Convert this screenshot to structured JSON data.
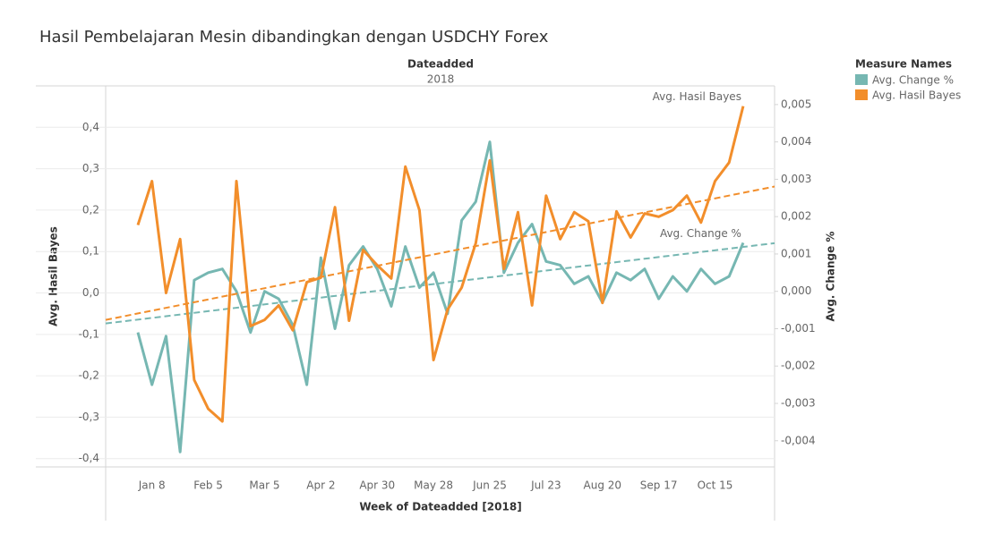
{
  "chart_data": {
    "type": "line",
    "title": "Hasil Pembelajaran Mesin dibandingkan dengan USDCHY Forex",
    "header_title": "Dateadded",
    "header_value": "2018",
    "x_label": "Week of Dateadded [2018]",
    "y_label": "Avg. Hasil Bayes",
    "y2_label": "Avg. Change %",
    "legend_title": "Measure Names",
    "legend_position": "right",
    "categories": [
      null,
      "Jan 8",
      null,
      null,
      null,
      "Feb 5",
      null,
      null,
      null,
      "Mar 5",
      null,
      null,
      null,
      "Apr 2",
      null,
      null,
      null,
      "Apr 30",
      null,
      null,
      null,
      "May 28",
      null,
      null,
      null,
      "Jun 25",
      null,
      null,
      null,
      "Jul 23",
      null,
      null,
      null,
      "Aug 20",
      null,
      null,
      null,
      "Sep 17",
      null,
      null,
      null,
      "Oct 15",
      null,
      null
    ],
    "ylim": [
      -0.42,
      0.5
    ],
    "yticks": [
      {
        "value": -0.4,
        "label": "-0,4"
      },
      {
        "value": -0.3,
        "label": "-0,3"
      },
      {
        "value": -0.2,
        "label": "-0,2"
      },
      {
        "value": -0.1,
        "label": "-0,1"
      },
      {
        "value": 0,
        "label": "0,0"
      },
      {
        "value": 0.1,
        "label": "0,1"
      },
      {
        "value": 0.2,
        "label": "0,2"
      },
      {
        "value": 0.3,
        "label": "0,3"
      },
      {
        "value": 0.4,
        "label": "0,4"
      }
    ],
    "y2lim": [
      -0.0047,
      0.0055
    ],
    "y2ticks": [
      {
        "value": -0.004,
        "label": "-0,004"
      },
      {
        "value": -0.003,
        "label": "-0,003"
      },
      {
        "value": -0.002,
        "label": "-0,002"
      },
      {
        "value": -0.001,
        "label": "-0,001"
      },
      {
        "value": 0,
        "label": "0,000"
      },
      {
        "value": 0.001,
        "label": "0,001"
      },
      {
        "value": 0.002,
        "label": "0,002"
      },
      {
        "value": 0.003,
        "label": "0,003"
      },
      {
        "value": 0.004,
        "label": "0,004"
      },
      {
        "value": 0.005,
        "label": "0,005"
      }
    ],
    "grid": true,
    "series": [
      {
        "name": "Avg. Change %",
        "color": "#76b7b2",
        "axis": "y2",
        "trend": [
          -0.00086,
          0.00129
        ],
        "values": [
          -0.0011,
          -0.0025,
          -0.0012,
          -0.0043,
          0.0003,
          0.0005,
          0.0006,
          0.0,
          -0.0011,
          0.0,
          -0.0002,
          -0.0009,
          -0.0025,
          0.0009,
          -0.001,
          0.0007,
          0.0012,
          0.0006,
          -0.0004,
          0.0012,
          0.0001,
          0.0005,
          -0.0006,
          0.0019,
          0.0024,
          0.004,
          0.0005,
          0.0013,
          0.0018,
          0.0008,
          0.0007,
          0.0002,
          0.0004,
          -0.0003,
          0.0005,
          0.0003,
          0.0006,
          -0.0002,
          0.0004,
          0.0,
          0.0006,
          0.0002,
          0.0004,
          0.0013
        ]
      },
      {
        "name": "Avg. Hasil Bayes",
        "color": "#f28e2b",
        "axis": "y",
        "trend": [
          -0.065,
          0.257
        ],
        "values": [
          0.164,
          0.27,
          0.0,
          0.13,
          -0.21,
          -0.28,
          -0.31,
          0.27,
          -0.08,
          -0.065,
          -0.03,
          -0.09,
          0.026,
          0.037,
          0.207,
          -0.067,
          0.104,
          0.067,
          0.035,
          0.305,
          0.2,
          -0.162,
          -0.04,
          0.013,
          0.12,
          0.32,
          0.058,
          0.195,
          -0.03,
          0.235,
          0.13,
          0.195,
          0.173,
          -0.024,
          0.197,
          0.134,
          0.192,
          0.184,
          0.2,
          0.235,
          0.17,
          0.27,
          0.315,
          0.451
        ]
      }
    ]
  }
}
